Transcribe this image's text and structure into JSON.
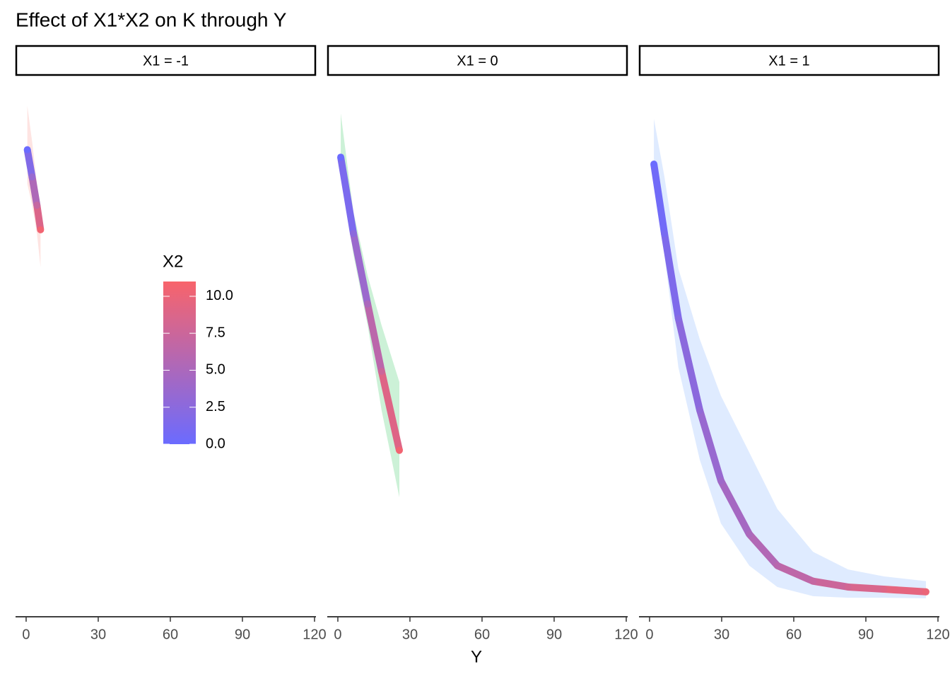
{
  "chart_data": {
    "type": "faceted-ribbon-line",
    "title": "Effect of X1*X2 on K through Y",
    "x_label": "Y",
    "xlim": [
      -4.4,
      120.6
    ],
    "xticks": [
      0,
      30,
      60,
      90,
      120
    ],
    "ylim": [
      0,
      100
    ],
    "legend": {
      "title": "X2",
      "limits": [
        0,
        11
      ],
      "low_color": "#6b6bff",
      "high_color": "#f8646b",
      "ticks": [
        {
          "value": 0,
          "label": "0.0"
        },
        {
          "value": 2.5,
          "label": "2.5"
        },
        {
          "value": 5,
          "label": "5.0"
        },
        {
          "value": 7.5,
          "label": "7.5"
        },
        {
          "value": 10,
          "label": "10.0"
        }
      ]
    },
    "facets": [
      {
        "label": "X1 = -1",
        "ribbon_color": "#f8766d",
        "y": [
          0.5,
          2.5,
          4.5,
          6
        ],
        "k": [
          87.2,
          82.1,
          76.8,
          72.2
        ],
        "lower": [
          80.8,
          76.8,
          71.5,
          65.2
        ],
        "upper": [
          95.4,
          88.7,
          80.8,
          75.5
        ],
        "x2": [
          0,
          3.5,
          7,
          10.5
        ]
      },
      {
        "label": "X1 = 0",
        "ribbon_color": "#00ba38",
        "y": [
          1.2,
          6.5,
          12.4,
          18.2,
          25.6
        ],
        "k": [
          85.8,
          71.5,
          58.3,
          45.7,
          30.9
        ],
        "lower": [
          83.4,
          67.5,
          54.3,
          38.4,
          22.1
        ],
        "upper": [
          94.0,
          75.5,
          63.6,
          54.3,
          43.7
        ],
        "x2": [
          0,
          2.5,
          5,
          7.5,
          10.5
        ]
      },
      {
        "label": "X1 = 1",
        "ribbon_color": "#619cff",
        "y": [
          1.8,
          6.2,
          12,
          20.9,
          29.7,
          41.5,
          53.2,
          68,
          82.6,
          97.4,
          115
        ],
        "k": [
          84.5,
          71.5,
          55.6,
          38.4,
          25.2,
          15.2,
          9.3,
          6.4,
          5.3,
          4.9,
          4.4
        ],
        "lower": [
          82.1,
          67.5,
          46.4,
          29.1,
          17.2,
          9.3,
          5.3,
          3.6,
          3.3,
          3.3,
          3.2
        ],
        "upper": [
          93.0,
          82.1,
          64.9,
          51.7,
          41.1,
          30.5,
          19.9,
          11.9,
          8.6,
          7.3,
          6.4
        ],
        "x2": [
          0,
          1,
          2,
          3,
          4,
          5,
          6,
          7,
          8,
          9,
          10
        ]
      }
    ]
  }
}
